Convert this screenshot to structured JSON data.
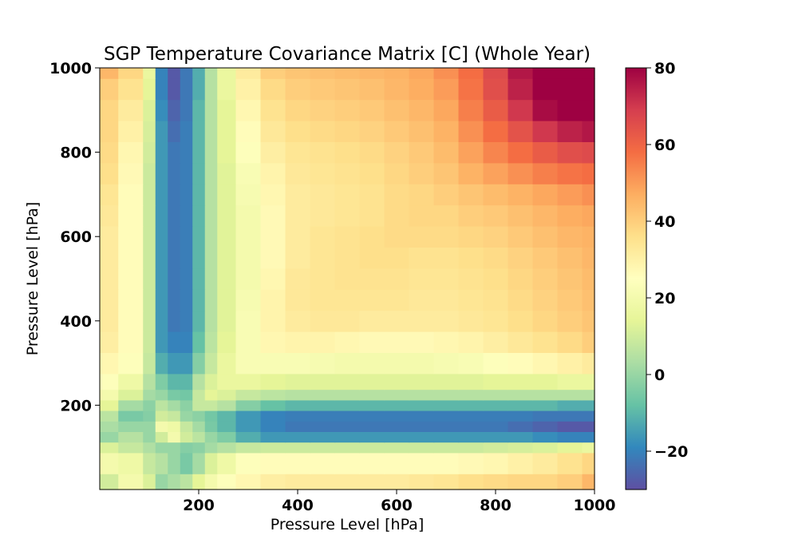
{
  "chart_data": {
    "type": "heatmap",
    "title": "SGP Temperature Covariance Matrix [C] (Whole Year)",
    "xlabel": "Pressure Level [hPa]",
    "ylabel": "Pressure Level [hPa]",
    "xlim": [
      0,
      1000
    ],
    "ylim": [
      0,
      1000
    ],
    "xticks": [
      200,
      400,
      600,
      800,
      1000
    ],
    "yticks": [
      200,
      400,
      600,
      800,
      1000
    ],
    "colorbar": {
      "colormap": "Spectral_r",
      "range": [
        -30,
        80
      ],
      "ticks": [
        -20,
        0,
        20,
        40,
        60,
        80
      ],
      "tick_labels": [
        "−20",
        "0",
        "20",
        "40",
        "60",
        "80"
      ]
    },
    "grid": false,
    "levels_hpa": [
      0,
      75,
      100,
      125,
      150,
      175,
      200,
      225,
      250,
      300,
      350,
      400,
      450,
      500,
      550,
      600,
      650,
      700,
      750,
      800,
      850,
      900,
      950,
      1000
    ],
    "row_values": [
      [
        10,
        20,
        12,
        0,
        3,
        6,
        14,
        20,
        24,
        28,
        31,
        32,
        32,
        32,
        32,
        32,
        33,
        34,
        36,
        37,
        38,
        38,
        40,
        45
      ],
      [
        20,
        18,
        8,
        5,
        0,
        -5,
        2,
        12,
        18,
        24,
        26,
        26,
        26,
        26,
        26,
        26,
        26,
        26,
        27,
        28,
        30,
        32,
        35,
        38
      ],
      [
        12,
        8,
        4,
        0,
        0,
        -3,
        -2,
        2,
        5,
        8,
        9,
        9,
        9,
        9,
        9,
        9,
        9,
        9,
        9,
        10,
        11,
        12,
        14,
        16
      ],
      [
        0,
        5,
        0,
        10,
        20,
        10,
        6,
        0,
        -4,
        -12,
        -16,
        -16,
        -16,
        -16,
        -16,
        -16,
        -16,
        -16,
        -16,
        -16,
        -16,
        -18,
        -20,
        -20
      ],
      [
        3,
        0,
        0,
        20,
        18,
        8,
        2,
        -5,
        -10,
        -16,
        -20,
        -22,
        -22,
        -22,
        -22,
        -22,
        -22,
        -22,
        -22,
        -22,
        -24,
        -26,
        -28,
        -28
      ],
      [
        6,
        -5,
        -3,
        10,
        8,
        0,
        -2,
        -6,
        -10,
        -16,
        -20,
        -21,
        -21,
        -21,
        -21,
        -21,
        -21,
        -21,
        -21,
        -21,
        -21,
        -22,
        -22,
        -22
      ],
      [
        14,
        2,
        -2,
        6,
        2,
        -2,
        8,
        8,
        5,
        -3,
        -8,
        -10,
        -10,
        -10,
        -10,
        -10,
        -10,
        -10,
        -10,
        -10,
        -10,
        -10,
        -12,
        -12
      ],
      [
        20,
        12,
        2,
        0,
        -5,
        -6,
        8,
        14,
        12,
        8,
        6,
        5,
        5,
        5,
        5,
        5,
        5,
        5,
        5,
        5,
        5,
        5,
        5,
        5
      ],
      [
        24,
        18,
        5,
        -4,
        -10,
        -10,
        5,
        12,
        16,
        16,
        14,
        13,
        13,
        13,
        13,
        13,
        13,
        13,
        13,
        14,
        14,
        14,
        16,
        16
      ],
      [
        28,
        24,
        8,
        -12,
        -16,
        -16,
        -3,
        8,
        16,
        22,
        22,
        22,
        21,
        20,
        20,
        20,
        20,
        21,
        22,
        24,
        26,
        28,
        30,
        32
      ],
      [
        31,
        26,
        9,
        -16,
        -20,
        -20,
        -8,
        6,
        14,
        22,
        28,
        29,
        29,
        28,
        27,
        27,
        27,
        28,
        29,
        31,
        33,
        35,
        37,
        40
      ],
      [
        32,
        26,
        9,
        -16,
        -22,
        -21,
        -10,
        5,
        13,
        22,
        29,
        32,
        33,
        33,
        32,
        32,
        32,
        32,
        33,
        34,
        36,
        38,
        40,
        42
      ],
      [
        32,
        26,
        9,
        -16,
        -22,
        -21,
        -10,
        5,
        13,
        21,
        29,
        33,
        34,
        34,
        34,
        34,
        33,
        33,
        34,
        35,
        37,
        39,
        41,
        43
      ],
      [
        32,
        26,
        9,
        -16,
        -22,
        -21,
        -10,
        5,
        13,
        20,
        28,
        33,
        34,
        35,
        35,
        35,
        34,
        34,
        35,
        36,
        38,
        40,
        42,
        44
      ],
      [
        32,
        26,
        9,
        -16,
        -22,
        -21,
        -10,
        5,
        13,
        20,
        27,
        32,
        34,
        35,
        36,
        36,
        35,
        35,
        36,
        37,
        39,
        41,
        43,
        45
      ],
      [
        32,
        26,
        9,
        -16,
        -22,
        -21,
        -10,
        5,
        13,
        20,
        27,
        32,
        34,
        35,
        36,
        37,
        37,
        37,
        38,
        39,
        41,
        43,
        45,
        46
      ],
      [
        33,
        26,
        9,
        -16,
        -22,
        -21,
        -10,
        5,
        13,
        20,
        27,
        32,
        33,
        34,
        35,
        37,
        38,
        38,
        40,
        41,
        43,
        45,
        47,
        48
      ],
      [
        34,
        26,
        9,
        -16,
        -22,
        -21,
        -10,
        5,
        13,
        21,
        28,
        32,
        33,
        34,
        35,
        37,
        38,
        40,
        42,
        44,
        46,
        48,
        50,
        52
      ],
      [
        36,
        27,
        9,
        -16,
        -22,
        -21,
        -10,
        5,
        13,
        22,
        29,
        33,
        34,
        35,
        36,
        38,
        40,
        42,
        46,
        49,
        52,
        55,
        57,
        58
      ],
      [
        37,
        28,
        10,
        -16,
        -22,
        -21,
        -10,
        5,
        14,
        24,
        31,
        34,
        35,
        36,
        37,
        39,
        41,
        44,
        49,
        54,
        58,
        62,
        65,
        66
      ],
      [
        38,
        30,
        11,
        -16,
        -24,
        -21,
        -10,
        5,
        14,
        26,
        33,
        36,
        37,
        38,
        39,
        41,
        43,
        46,
        52,
        58,
        64,
        70,
        74,
        76
      ],
      [
        38,
        32,
        12,
        -18,
        -26,
        -22,
        -10,
        5,
        14,
        28,
        35,
        38,
        39,
        40,
        41,
        43,
        45,
        48,
        55,
        62,
        70,
        78,
        82,
        84
      ],
      [
        40,
        35,
        14,
        -20,
        -28,
        -22,
        -12,
        5,
        16,
        30,
        37,
        40,
        41,
        42,
        43,
        45,
        47,
        50,
        57,
        65,
        74,
        82,
        88,
        90
      ],
      [
        45,
        38,
        16,
        -20,
        -28,
        -22,
        -12,
        5,
        16,
        32,
        40,
        42,
        43,
        44,
        45,
        46,
        48,
        52,
        58,
        66,
        76,
        84,
        90,
        94
      ]
    ]
  }
}
